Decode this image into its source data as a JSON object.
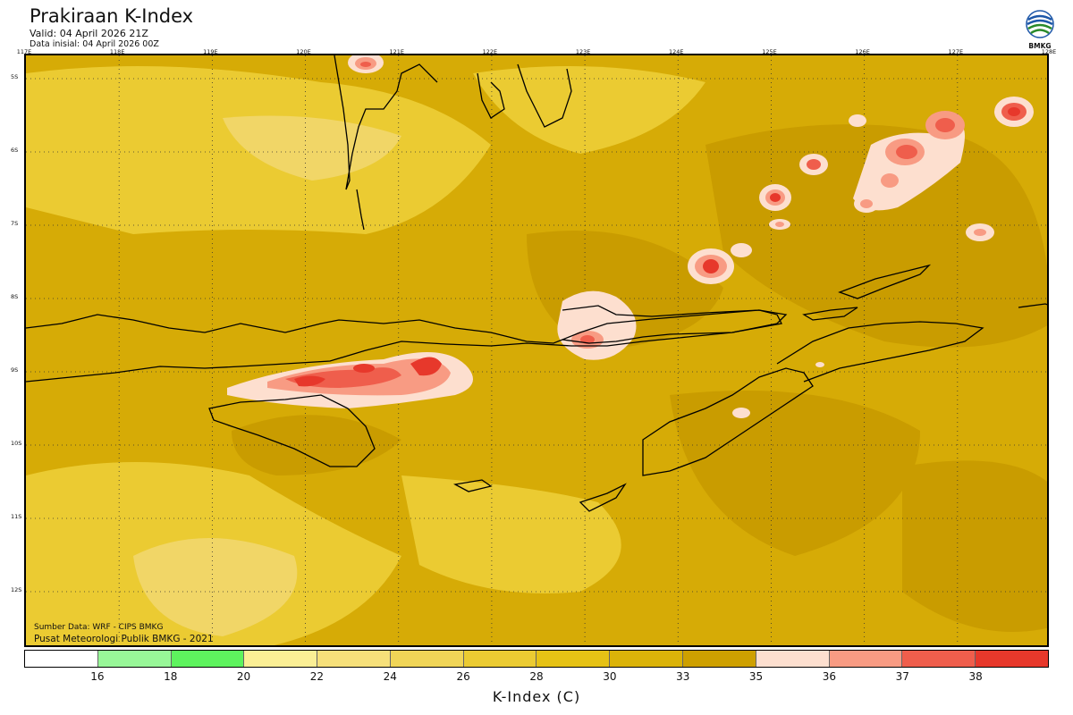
{
  "header": {
    "title": "Prakiraan K-Index",
    "valid": "Valid: 04 April 2026 21Z",
    "init": "Data inisial: 04 April 2026 00Z"
  },
  "logo": {
    "text": "BMKG",
    "icon": "bmkg-logo-icon"
  },
  "lon_labels": [
    "117E",
    "118E",
    "119E",
    "120E",
    "121E",
    "122E",
    "123E",
    "124E",
    "125E",
    "126E",
    "127E",
    "128E"
  ],
  "lat_labels": [
    "5S",
    "6S",
    "7S",
    "8S",
    "9S",
    "10S",
    "11S",
    "12S"
  ],
  "source": {
    "line1": "Sumber Data: WRF - CIPS BMKG",
    "line2": "Pusat Meteorologi Publik BMKG - 2021"
  },
  "colorbar": {
    "title": "K-Index (C)",
    "labels": [
      "16",
      "18",
      "20",
      "22",
      "24",
      "26",
      "28",
      "30",
      "33",
      "35",
      "36",
      "37",
      "38"
    ],
    "colors": [
      "#ffffff",
      "#98f798",
      "#5ef35e",
      "#fbef95",
      "#f6e07a",
      "#f0d557",
      "#ebcb32",
      "#e6c215",
      "#dbb309",
      "#cea000",
      "#fddfcf",
      "#f89b83",
      "#ef5e4c",
      "#e7382b"
    ]
  },
  "map_colors": {
    "base": "#d6ab06",
    "light": "#ebcb32",
    "lighter": "#f1d667",
    "dark": "#c99c00",
    "hot1": "#fddfcf",
    "hot2": "#f89b83",
    "hot3": "#ef5e4c",
    "hot4": "#e7382b",
    "coast": "#000000"
  }
}
